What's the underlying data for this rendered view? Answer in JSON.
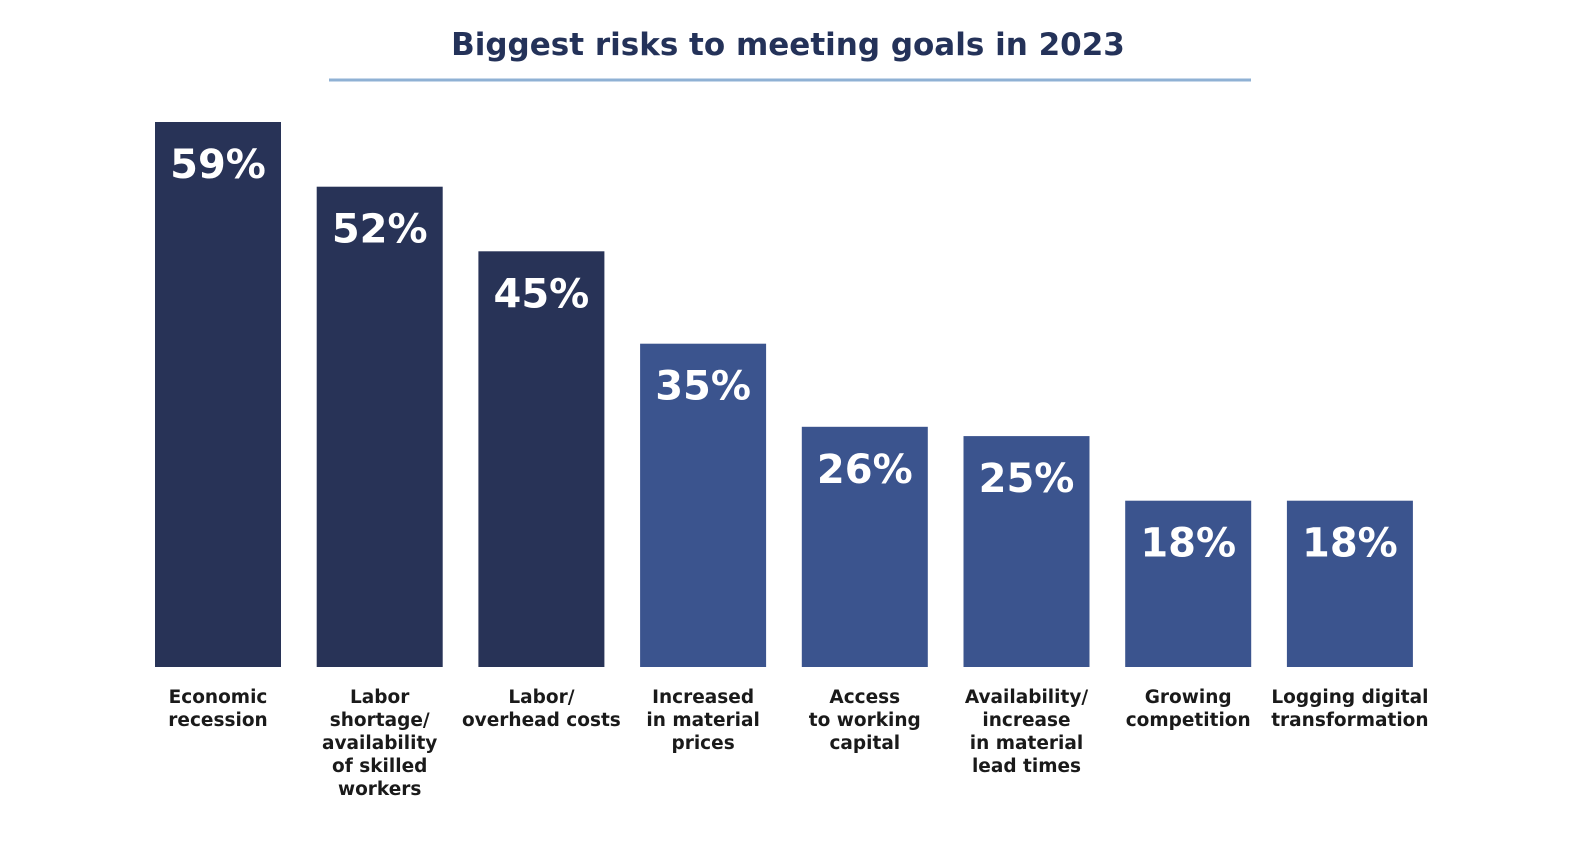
{
  "chart_data": {
    "type": "bar",
    "title": "Biggest risks to meeting goals in 2023",
    "categories": [
      [
        "Economic",
        "recession"
      ],
      [
        "Labor",
        "shortage/",
        "availability",
        "of skilled",
        "workers"
      ],
      [
        "Labor/",
        "overhead costs"
      ],
      [
        "Increased",
        "in material",
        "prices"
      ],
      [
        "Access",
        "to working",
        "capital"
      ],
      [
        "Availability/",
        "increase",
        "in material",
        "lead times"
      ],
      [
        "Growing",
        "competition"
      ],
      [
        "Logging digital",
        "transformation"
      ]
    ],
    "values": [
      59,
      52,
      45,
      35,
      26,
      25,
      18,
      18
    ],
    "value_labels": [
      "59%",
      "52%",
      "45%",
      "35%",
      "26%",
      "25%",
      "18%",
      "18%"
    ],
    "ylim": [
      0,
      59
    ],
    "xlabel": "",
    "ylabel": "",
    "grid": false,
    "colors": {
      "dark_bar": "#283357",
      "light_bar": "#3b548e",
      "title": "#243259",
      "title_rule": "#8fb1d4",
      "value_text": "#ffffff",
      "label_text": "#1a1a1a"
    },
    "bar_color_groups": [
      "dark",
      "dark",
      "dark",
      "light",
      "light",
      "light",
      "light",
      "light"
    ]
  }
}
